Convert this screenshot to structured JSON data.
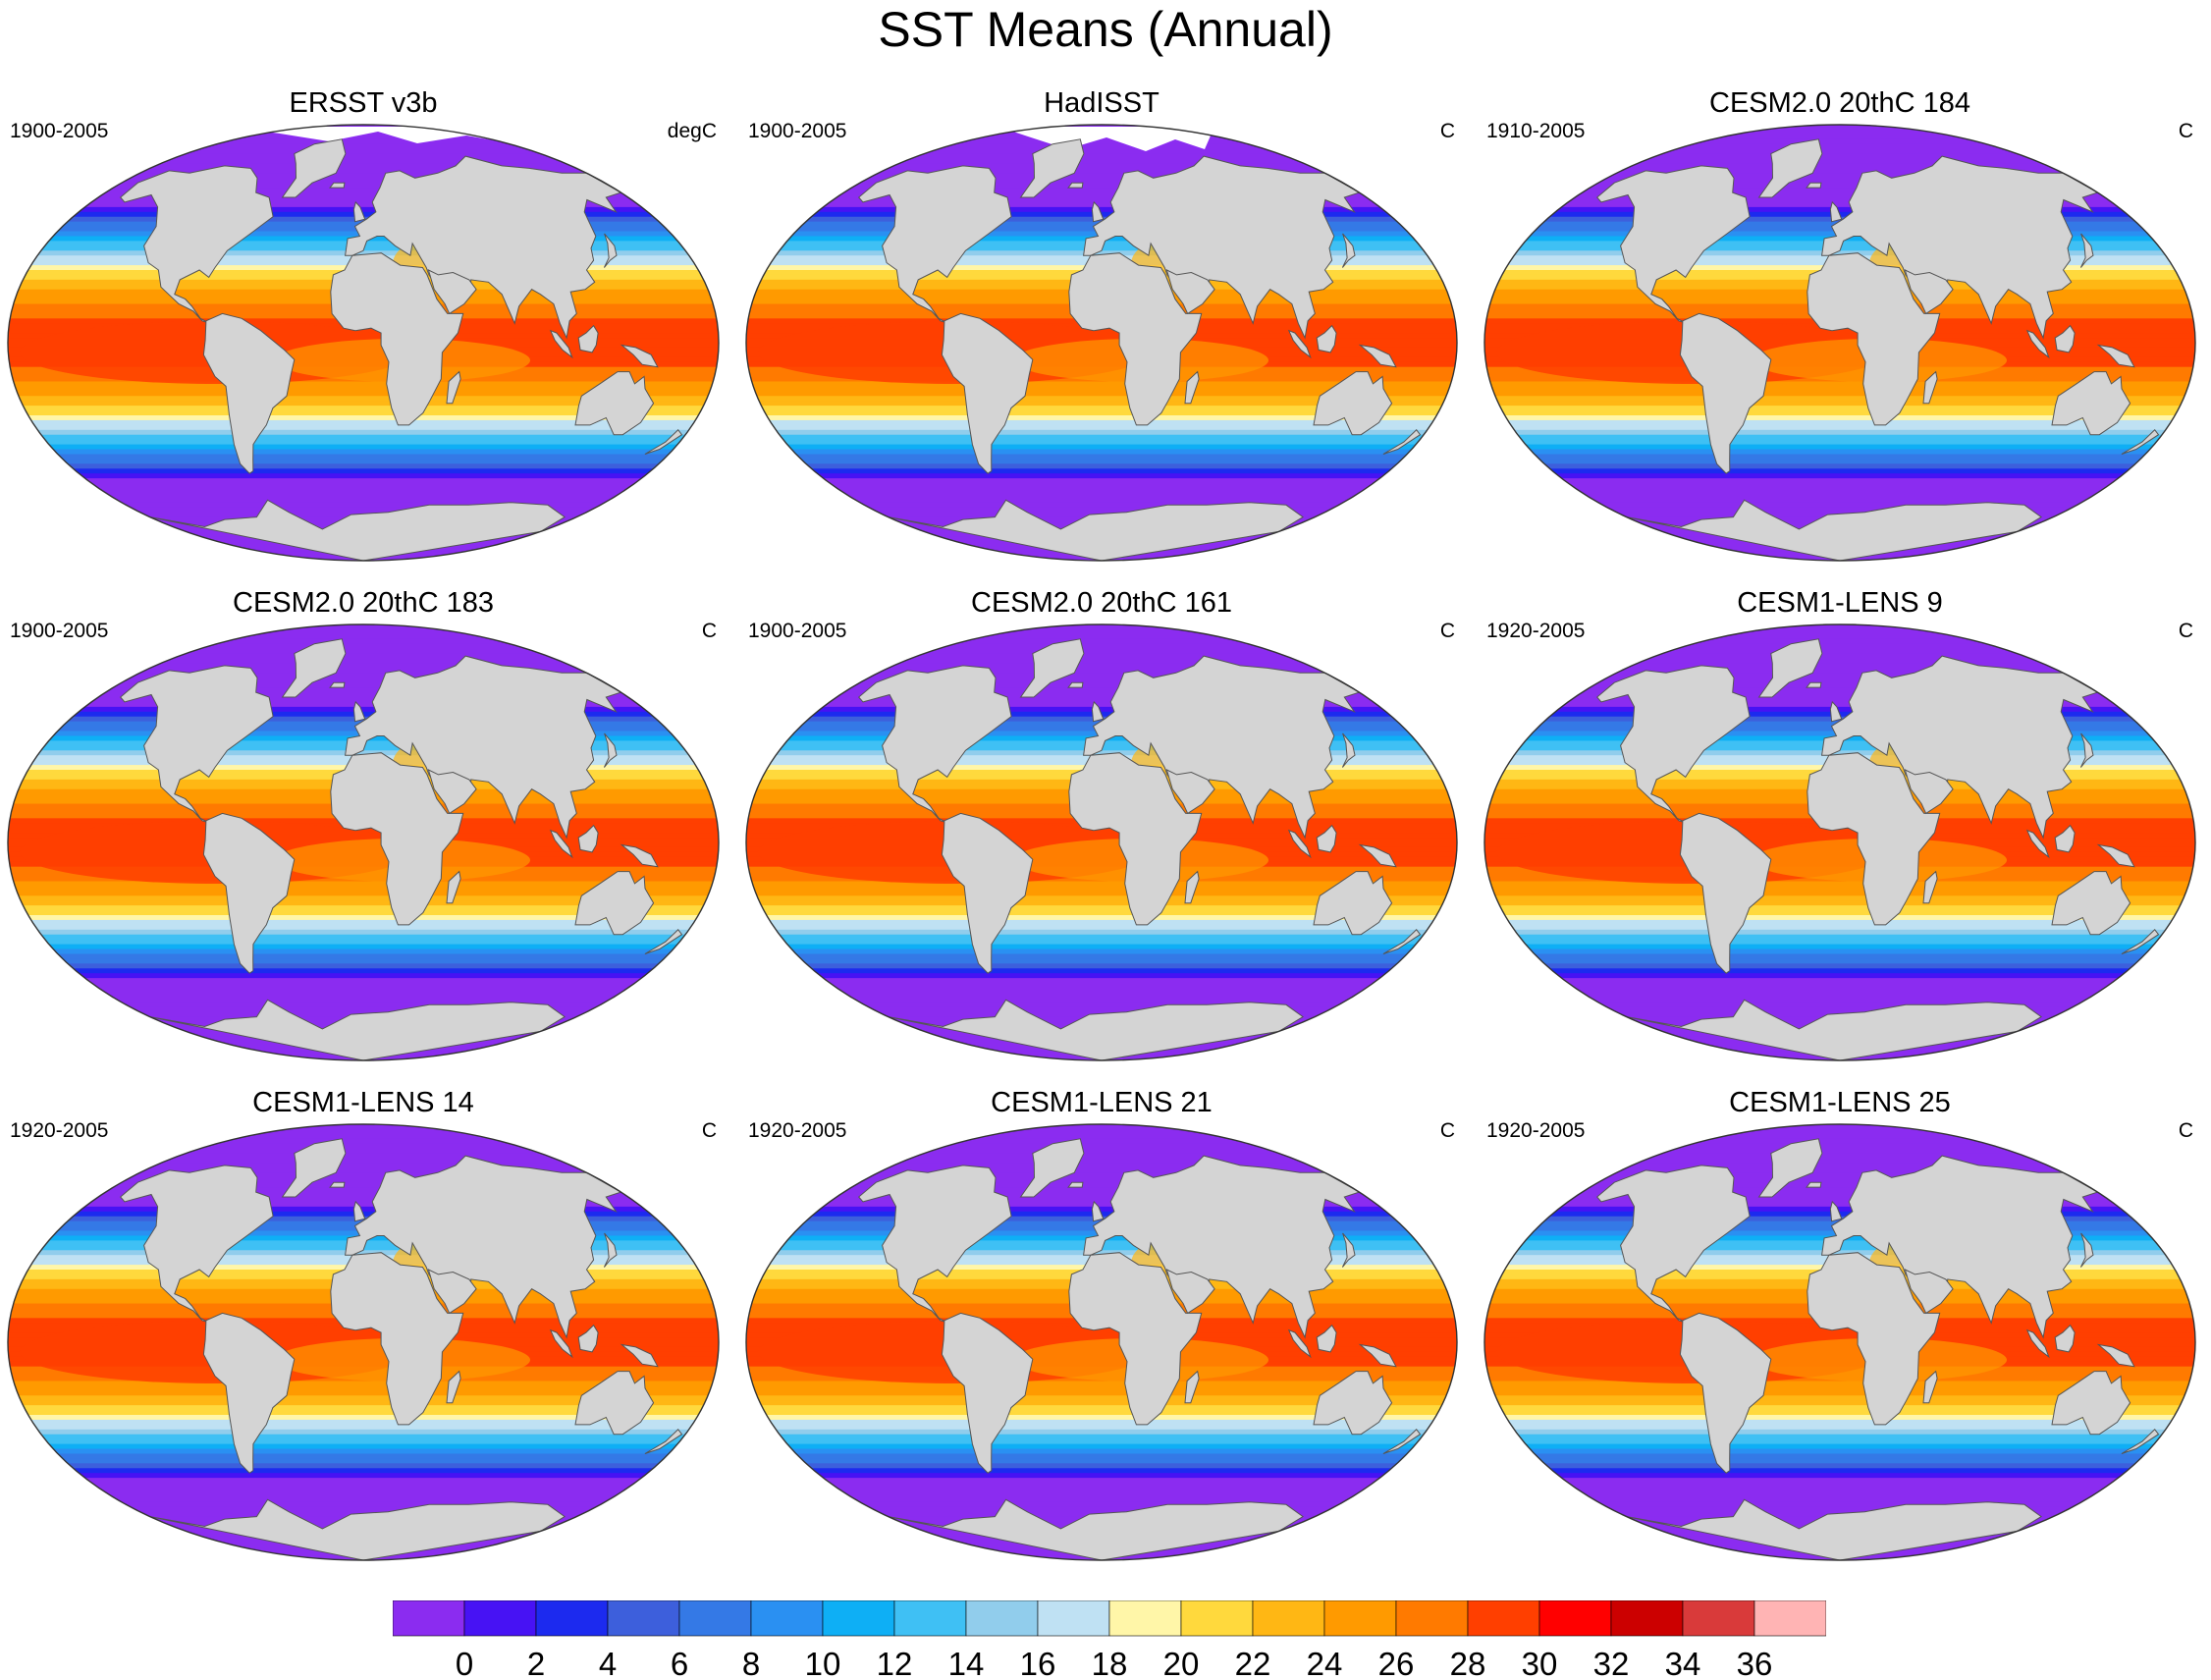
{
  "figure": {
    "title": "SST Means (Annual)"
  },
  "panels": [
    {
      "title": "ERSST v3b",
      "period": "1900-2005",
      "units": "degC",
      "variant": "obs"
    },
    {
      "title": "HadISST",
      "period": "1900-2005",
      "units": "C",
      "variant": "obs2"
    },
    {
      "title": "CESM2.0 20thC 184",
      "period": "1910-2005",
      "units": "C",
      "variant": "model"
    },
    {
      "title": "CESM2.0 20thC 183",
      "period": "1900-2005",
      "units": "C",
      "variant": "model"
    },
    {
      "title": "CESM2.0 20thC 161",
      "period": "1900-2005",
      "units": "C",
      "variant": "model"
    },
    {
      "title": "CESM1-LENS 9",
      "period": "1920-2005",
      "units": "C",
      "variant": "model"
    },
    {
      "title": "CESM1-LENS 14",
      "period": "1920-2005",
      "units": "C",
      "variant": "model"
    },
    {
      "title": "CESM1-LENS 21",
      "period": "1920-2005",
      "units": "C",
      "variant": "model"
    },
    {
      "title": "CESM1-LENS 25",
      "period": "1920-2005",
      "units": "C",
      "variant": "model"
    }
  ],
  "colorbar": {
    "tick_labels": [
      "0",
      "2",
      "4",
      "6",
      "8",
      "10",
      "12",
      "14",
      "16",
      "18",
      "20",
      "22",
      "24",
      "26",
      "28",
      "30",
      "32",
      "34",
      "36"
    ],
    "colors": [
      "#8b2cf0",
      "#4712f4",
      "#1c2aef",
      "#3d5fdc",
      "#3479e6",
      "#2a90f2",
      "#0eaff5",
      "#3fc0f4",
      "#91cdec",
      "#bfe1f3",
      "#fff6a8",
      "#ffd93d",
      "#ffb714",
      "#ff9a00",
      "#ff7a00",
      "#ff3f00",
      "#ff0000",
      "#cc0000",
      "#d93a3a",
      "#ffb4b4"
    ]
  },
  "map_colors": {
    "land": "#d4d4d4",
    "coast": "#555555",
    "missing": "#ffffff"
  }
}
